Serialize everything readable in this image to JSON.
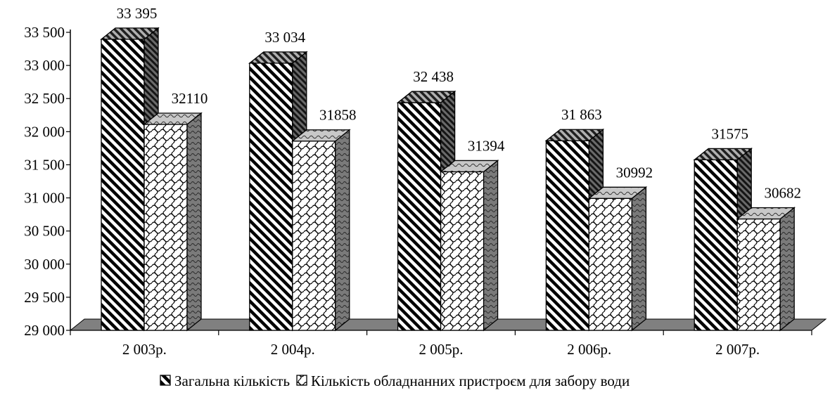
{
  "chart_data": {
    "type": "bar",
    "categories": [
      "2 003р.",
      "2 004р.",
      "2 005р.",
      "2 006р.",
      "2 007р."
    ],
    "series": [
      {
        "name": "Загальна кількість",
        "values": [
          33395,
          33034,
          32438,
          31863,
          31575
        ],
        "labels": [
          "33 395",
          "33 034",
          "32 438",
          "31 863",
          "31575"
        ],
        "pattern": "diagonal-stripes"
      },
      {
        "name": "Кількість обладнанних пристроєм для забору води",
        "values": [
          32110,
          31858,
          31394,
          30992,
          30682
        ],
        "labels": [
          "32110",
          "31858",
          "31394",
          "30992",
          "30682"
        ],
        "pattern": "lattice"
      }
    ],
    "ylim": [
      29000,
      33500
    ],
    "yticks": [
      29000,
      29500,
      30000,
      30500,
      31000,
      31500,
      32000,
      32500,
      33000,
      33500
    ],
    "ytick_labels": [
      "29 000",
      "29 500",
      "30 000",
      "30 500",
      "31 000",
      "31 500",
      "32 000",
      "32 500",
      "33 000",
      "33 500"
    ],
    "style": "3d",
    "legend_position": "bottom",
    "grid": false,
    "colors": {
      "floor": "#808080",
      "side_dark": "#555555",
      "stripe": "#000000",
      "background": "#ffffff"
    }
  }
}
